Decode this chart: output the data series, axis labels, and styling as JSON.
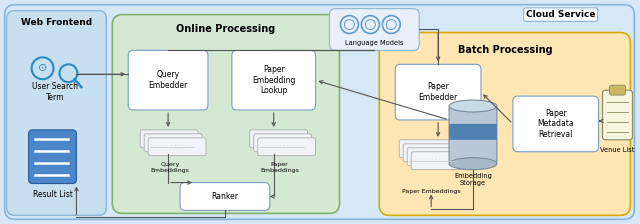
{
  "fig_width": 6.4,
  "fig_height": 2.24,
  "dpi": 100,
  "bg_color": "#d6e8f7",
  "cloud_label": "Cloud Service",
  "web_frontend_label": "Web Frontend",
  "online_processing_label": "Online Processing",
  "batch_processing_label": "Batch Processing",
  "language_models_label": "Language Models",
  "query_embedder_label": "Query\nEmbedder",
  "paper_embedding_lookup_label": "Paper\nEmbedding\nLookup",
  "ranker_label": "Ranker",
  "paper_embedder_label": "Paper\nEmbedder",
  "paper_metadata_label": "Paper\nMetadata\nRetrieval",
  "embedding_storage_label": "Embedding\nStorage",
  "user_search_label": "User Search\nTerm",
  "result_list_label": "Result List",
  "venue_list_label": "Venue List",
  "query_embeddings_label": "Query\nEmbeddings",
  "paper_embeddings_online_label": "Paper\nEmbeddings",
  "paper_embeddings_batch_label": "Paper Embeddings"
}
